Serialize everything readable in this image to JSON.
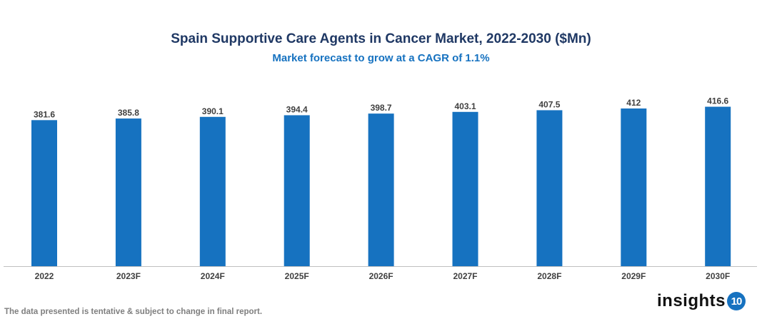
{
  "chart_data": {
    "type": "bar",
    "title": "Spain Supportive Care Agents in Cancer Market, 2022-2030 ($Mn)",
    "subtitle": "Market forecast to grow at a CAGR of 1.1%",
    "categories": [
      "2022",
      "2023F",
      "2024F",
      "2025F",
      "2026F",
      "2027F",
      "2028F",
      "2029F",
      "2030F"
    ],
    "values": [
      381.6,
      385.8,
      390.1,
      394.4,
      398.7,
      403.1,
      407.5,
      412,
      416.6
    ],
    "xlabel": "",
    "ylabel": "",
    "ylim": [
      0,
      440
    ],
    "grid": false,
    "legend": "none",
    "bar_color": "#1672c0",
    "data_labels": true
  },
  "footer": {
    "note": "The data presented is tentative & subject to change in final report.",
    "logo_text": "insights",
    "logo_number": "10"
  }
}
